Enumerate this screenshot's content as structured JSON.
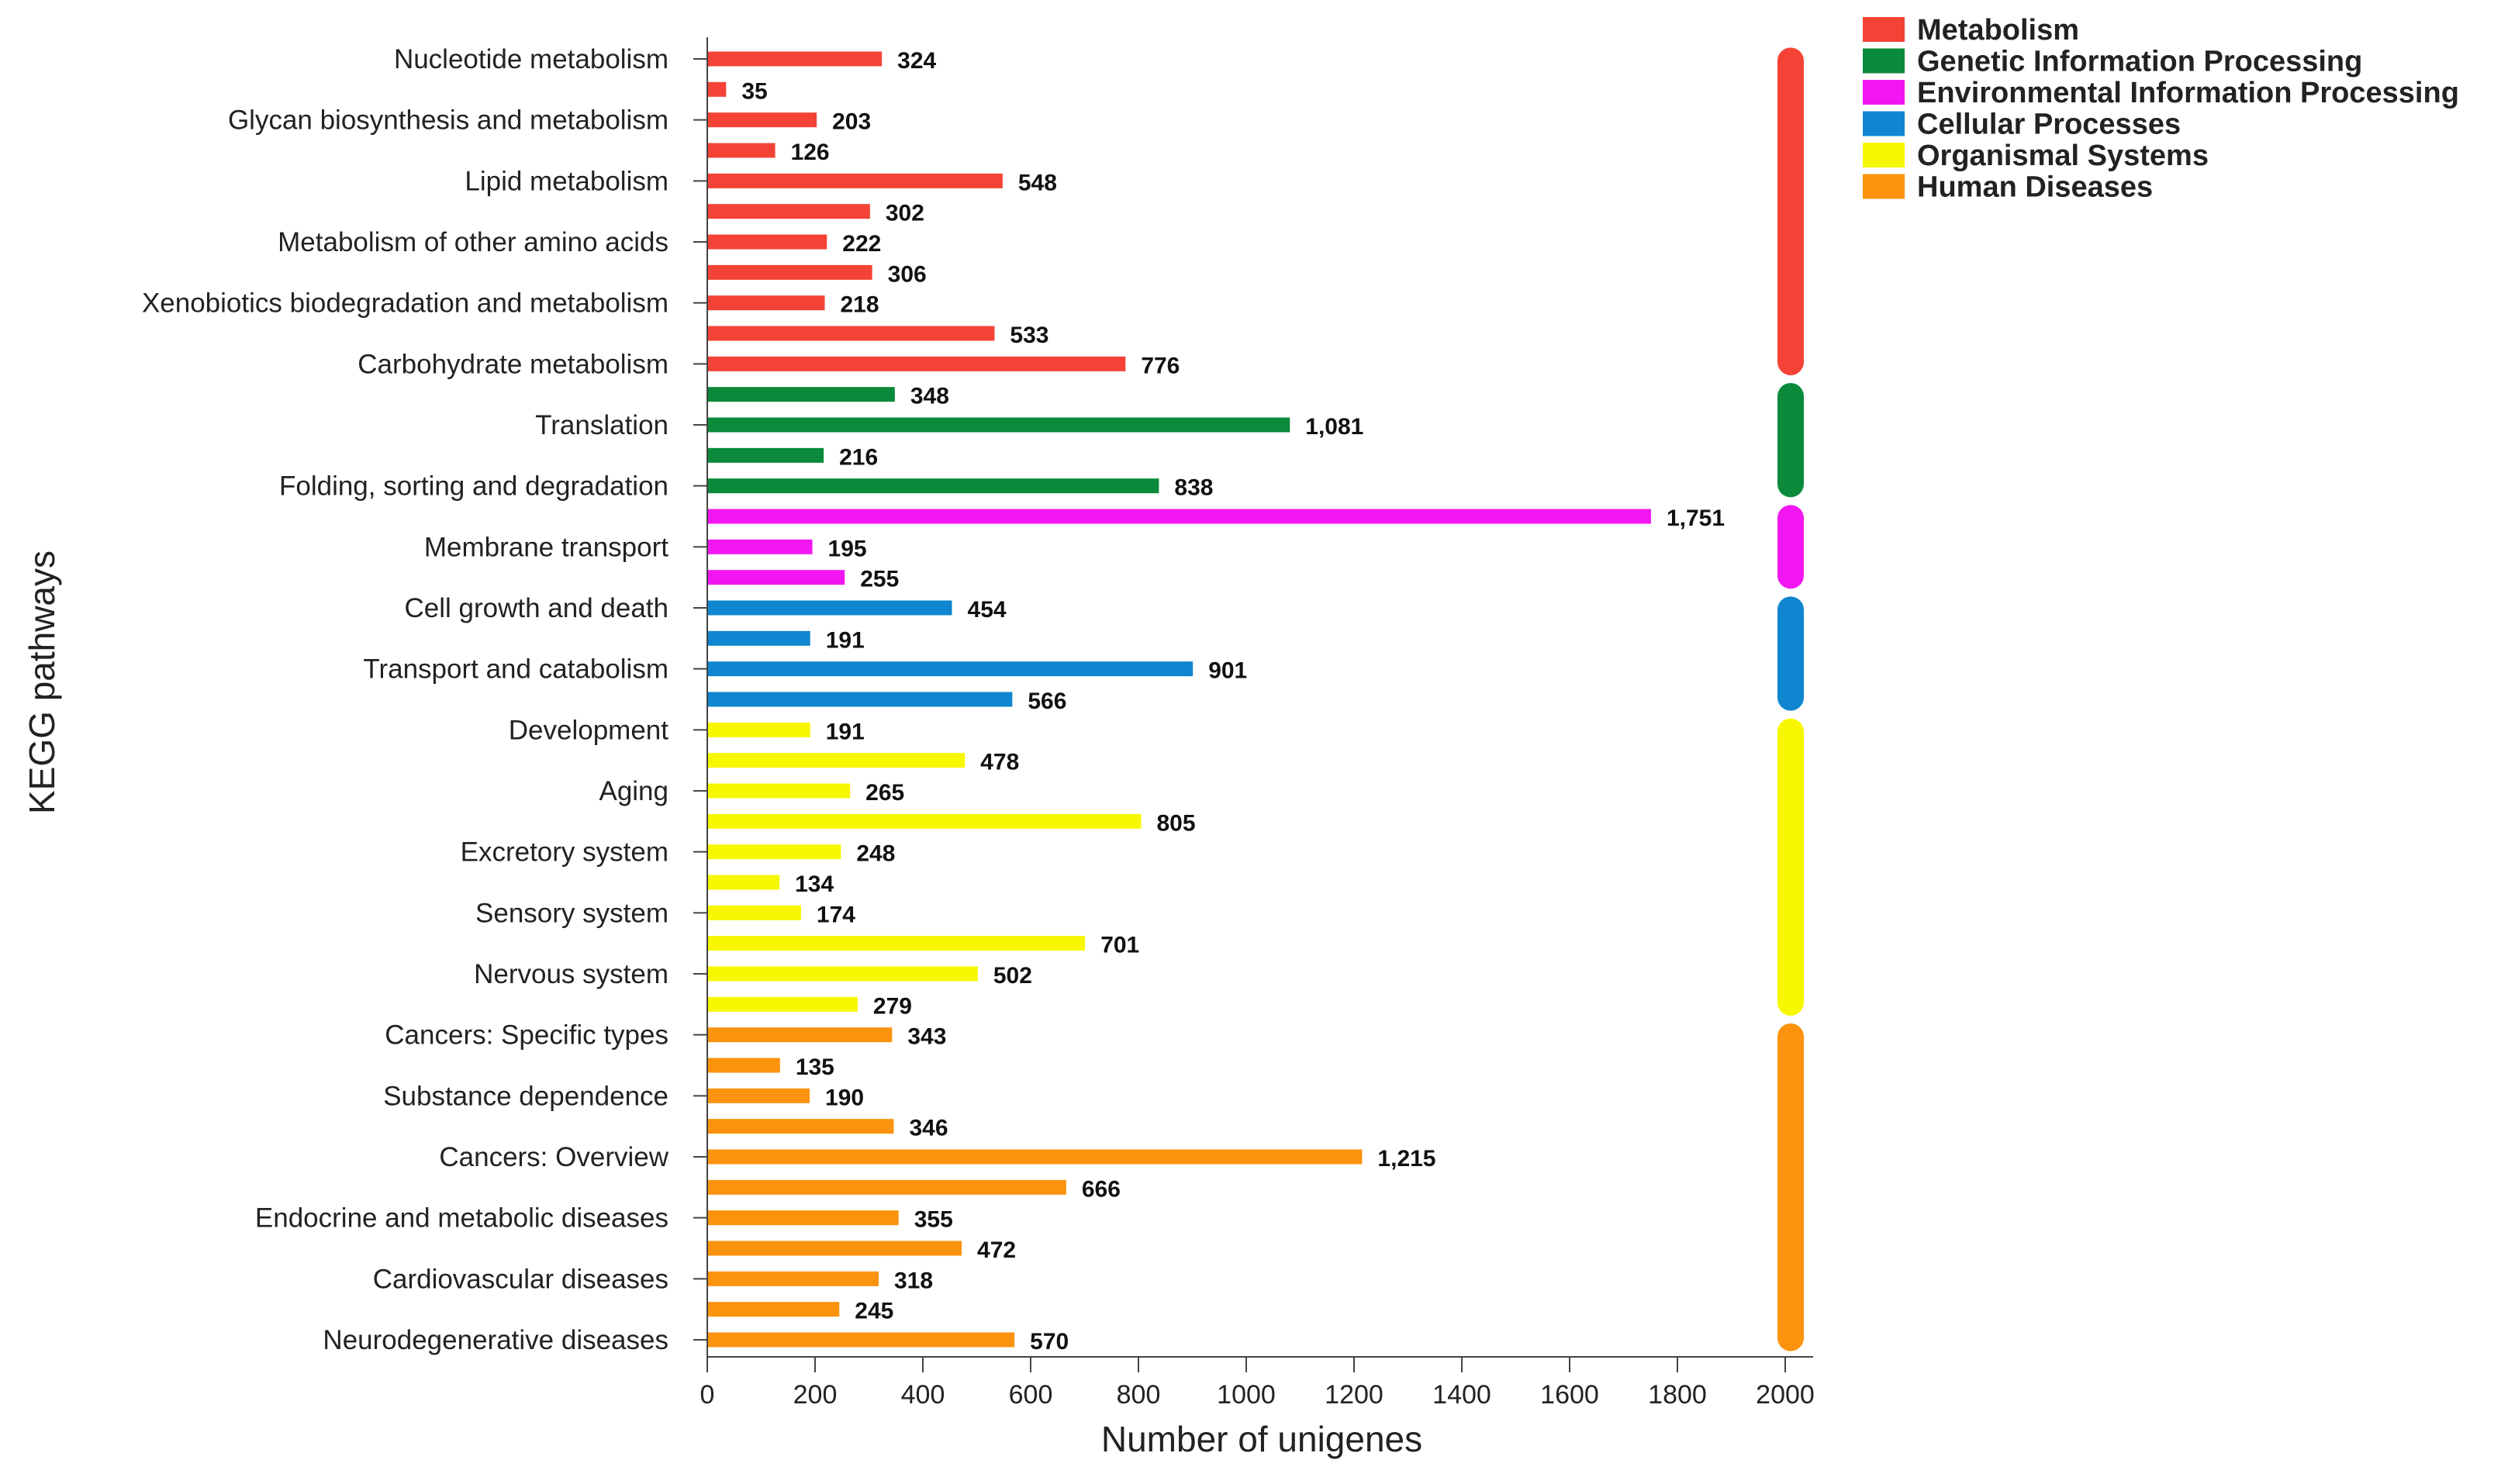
{
  "chart_data": {
    "type": "bar",
    "orientation": "horizontal",
    "xlabel": "Number of unigenes",
    "ylabel": "KEGG pathways",
    "xlim": [
      0,
      2000
    ],
    "xticks": [
      0,
      200,
      400,
      600,
      800,
      1000,
      1200,
      1400,
      1600,
      1800,
      2000
    ],
    "grid": false,
    "legend_position": "top-right",
    "groups": [
      {
        "name": "Metabolism",
        "color": "#f44336"
      },
      {
        "name": "Genetic Information Processing",
        "color": "#0a8a3a"
      },
      {
        "name": "Environmental Information Processing",
        "color": "#f217f2"
      },
      {
        "name": "Cellular Processes",
        "color": "#0f86cf"
      },
      {
        "name": "Organismal Systems",
        "color": "#f7f700"
      },
      {
        "name": "Human Diseases",
        "color": "#fb930e"
      }
    ],
    "bars": [
      {
        "category": "Nucleotide metabolism",
        "value": 324,
        "value_label": "324",
        "group": 0
      },
      {
        "category": "",
        "value": 35,
        "value_label": "35",
        "group": 0
      },
      {
        "category": "Glycan biosynthesis and metabolism",
        "value": 203,
        "value_label": "203",
        "group": 0
      },
      {
        "category": "",
        "value": 126,
        "value_label": "126",
        "group": 0
      },
      {
        "category": "Lipid metabolism",
        "value": 548,
        "value_label": "548",
        "group": 0
      },
      {
        "category": "",
        "value": 302,
        "value_label": "302",
        "group": 0
      },
      {
        "category": "Metabolism of other amino acids",
        "value": 222,
        "value_label": "222",
        "group": 0
      },
      {
        "category": "",
        "value": 306,
        "value_label": "306",
        "group": 0
      },
      {
        "category": "Xenobiotics biodegradation and metabolism",
        "value": 218,
        "value_label": "218",
        "group": 0
      },
      {
        "category": "",
        "value": 533,
        "value_label": "533",
        "group": 0
      },
      {
        "category": "Carbohydrate metabolism",
        "value": 776,
        "value_label": "776",
        "group": 0
      },
      {
        "category": "",
        "value": 348,
        "value_label": "348",
        "group": 1
      },
      {
        "category": "Translation",
        "value": 1081,
        "value_label": "1,081",
        "group": 1
      },
      {
        "category": "",
        "value": 216,
        "value_label": "216",
        "group": 1
      },
      {
        "category": "Folding, sorting and degradation",
        "value": 838,
        "value_label": "838",
        "group": 1
      },
      {
        "category": "",
        "value": 1751,
        "value_label": "1,751",
        "group": 2
      },
      {
        "category": "Membrane transport",
        "value": 195,
        "value_label": "195",
        "group": 2
      },
      {
        "category": "",
        "value": 255,
        "value_label": "255",
        "group": 2
      },
      {
        "category": "Cell growth and death",
        "value": 454,
        "value_label": "454",
        "group": 3
      },
      {
        "category": "",
        "value": 191,
        "value_label": "191",
        "group": 3
      },
      {
        "category": "Transport and catabolism",
        "value": 901,
        "value_label": "901",
        "group": 3
      },
      {
        "category": "",
        "value": 566,
        "value_label": "566",
        "group": 3
      },
      {
        "category": "Development",
        "value": 191,
        "value_label": "191",
        "group": 4
      },
      {
        "category": "",
        "value": 478,
        "value_label": "478",
        "group": 4
      },
      {
        "category": "Aging",
        "value": 265,
        "value_label": "265",
        "group": 4
      },
      {
        "category": "",
        "value": 805,
        "value_label": "805",
        "group": 4
      },
      {
        "category": "Excretory system",
        "value": 248,
        "value_label": "248",
        "group": 4
      },
      {
        "category": "",
        "value": 134,
        "value_label": "134",
        "group": 4
      },
      {
        "category": "Sensory system",
        "value": 174,
        "value_label": "174",
        "group": 4
      },
      {
        "category": "",
        "value": 701,
        "value_label": "701",
        "group": 4
      },
      {
        "category": "Nervous system",
        "value": 502,
        "value_label": "502",
        "group": 4
      },
      {
        "category": "",
        "value": 279,
        "value_label": "279",
        "group": 4
      },
      {
        "category": "Cancers: Specific types",
        "value": 343,
        "value_label": "343",
        "group": 5
      },
      {
        "category": "",
        "value": 135,
        "value_label": "135",
        "group": 5
      },
      {
        "category": "Substance dependence",
        "value": 190,
        "value_label": "190",
        "group": 5
      },
      {
        "category": "",
        "value": 346,
        "value_label": "346",
        "group": 5
      },
      {
        "category": "Cancers: Overview",
        "value": 1215,
        "value_label": "1,215",
        "group": 5
      },
      {
        "category": "",
        "value": 666,
        "value_label": "666",
        "group": 5
      },
      {
        "category": "Endocrine and metabolic diseases",
        "value": 355,
        "value_label": "355",
        "group": 5
      },
      {
        "category": "",
        "value": 472,
        "value_label": "472",
        "group": 5
      },
      {
        "category": "Cardiovascular diseases",
        "value": 318,
        "value_label": "318",
        "group": 5
      },
      {
        "category": "",
        "value": 245,
        "value_label": "245",
        "group": 5
      },
      {
        "category": "Neurodegenerative diseases",
        "value": 570,
        "value_label": "570",
        "group": 5
      }
    ]
  }
}
